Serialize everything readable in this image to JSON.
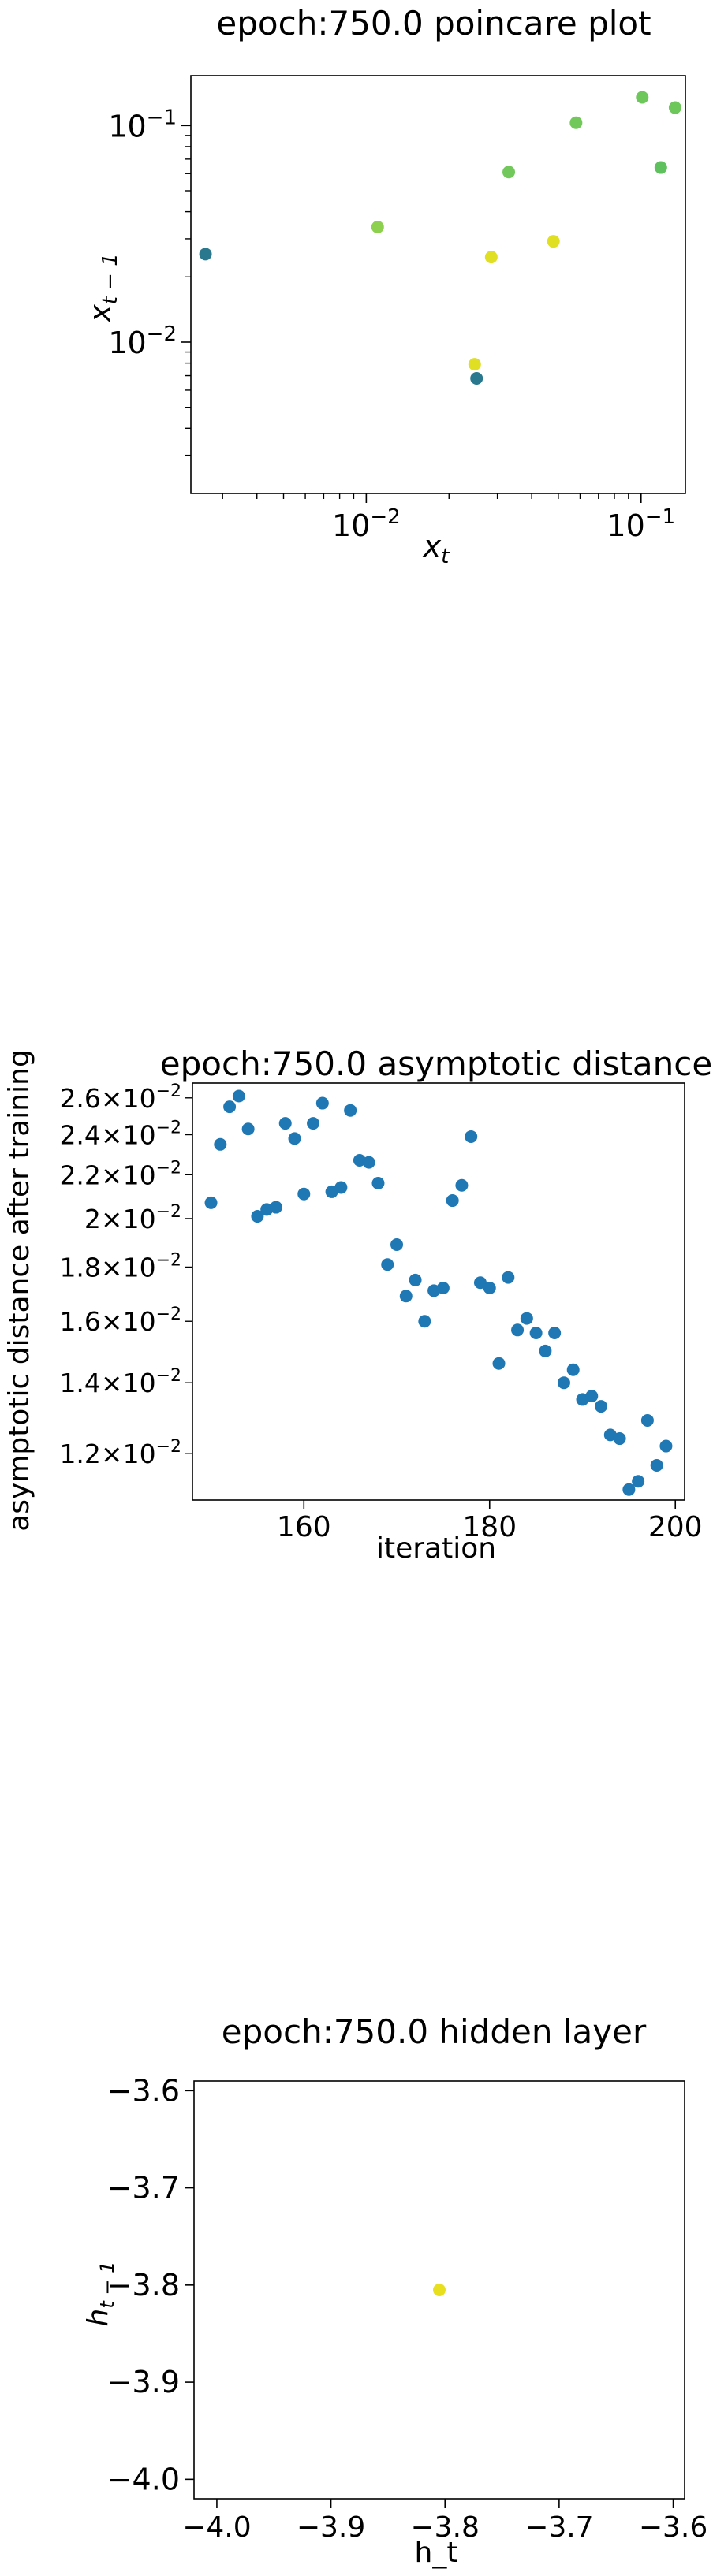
{
  "chart_data": [
    {
      "type": "scatter",
      "title": "epoch:750.0 poincare plot",
      "xlabel": "x_t",
      "ylabel": "x_{t-1}",
      "xscale": "log",
      "yscale": "log",
      "xlim": [
        0.0023,
        0.145
      ],
      "ylim": [
        0.002,
        0.17
      ],
      "xticks": [
        {
          "value": 0.01,
          "label": "10",
          "exp": "−2"
        },
        {
          "value": 0.1,
          "label": "10",
          "exp": "−1"
        }
      ],
      "yticks": [
        {
          "value": 0.01,
          "label": "10",
          "exp": "−2"
        },
        {
          "value": 0.1,
          "label": "10",
          "exp": "−1"
        }
      ],
      "grid": false,
      "points": [
        {
          "x": 0.0026,
          "y": 0.0255,
          "color": "#2a788e"
        },
        {
          "x": 0.0252,
          "y": 0.0068,
          "color": "#2a788e"
        },
        {
          "x": 0.0248,
          "y": 0.0079,
          "color": "#e0df23"
        },
        {
          "x": 0.0285,
          "y": 0.0247,
          "color": "#e0df23"
        },
        {
          "x": 0.048,
          "y": 0.0292,
          "color": "#e0df23"
        },
        {
          "x": 0.011,
          "y": 0.034,
          "color": "#8dd04f"
        },
        {
          "x": 0.033,
          "y": 0.061,
          "color": "#72c85b"
        },
        {
          "x": 0.058,
          "y": 0.103,
          "color": "#72c85b"
        },
        {
          "x": 0.101,
          "y": 0.135,
          "color": "#6ec75a"
        },
        {
          "x": 0.133,
          "y": 0.121,
          "color": "#6ec75a"
        },
        {
          "x": 0.118,
          "y": 0.064,
          "color": "#5fc15e"
        }
      ]
    },
    {
      "type": "scatter",
      "title": "epoch:750.0 asymptotic distance",
      "xlabel": "iteration",
      "ylabel": "asymptotic distance after training",
      "yscale": "log",
      "xlim": [
        148,
        201
      ],
      "ylim": [
        0.01085,
        0.02685
      ],
      "xticks": [
        {
          "value": 160,
          "label": "160"
        },
        {
          "value": 180,
          "label": "180"
        },
        {
          "value": 200,
          "label": "200"
        }
      ],
      "yticks": [
        {
          "value": 0.012,
          "label": "1.2×10",
          "exp": "−2"
        },
        {
          "value": 0.014,
          "label": "1.4×10",
          "exp": "−2"
        },
        {
          "value": 0.016,
          "label": "1.6×10",
          "exp": "−2"
        },
        {
          "value": 0.018,
          "label": "1.8×10",
          "exp": "−2"
        },
        {
          "value": 0.02,
          "label": "2×10",
          "exp": "−2"
        },
        {
          "value": 0.022,
          "label": "2.2×10",
          "exp": "−2"
        },
        {
          "value": 0.024,
          "label": "2.4×10",
          "exp": "−2"
        },
        {
          "value": 0.026,
          "label": "2.6×10",
          "exp": "−2"
        }
      ],
      "grid": false,
      "color": "#1f77b4",
      "x": [
        150,
        151,
        152,
        153,
        154,
        155,
        156,
        157,
        158,
        159,
        160,
        161,
        162,
        163,
        164,
        165,
        166,
        167,
        168,
        169,
        170,
        171,
        172,
        173,
        174,
        175,
        176,
        177,
        178,
        179,
        180,
        181,
        182,
        183,
        184,
        185,
        186,
        187,
        188,
        189,
        190,
        191,
        192,
        193,
        194,
        195,
        196,
        197,
        198,
        199
      ],
      "y": [
        0.0207,
        0.0235,
        0.0255,
        0.0261,
        0.0243,
        0.0201,
        0.0204,
        0.0205,
        0.0246,
        0.0238,
        0.0211,
        0.0246,
        0.0257,
        0.0212,
        0.0214,
        0.0253,
        0.0227,
        0.0226,
        0.0216,
        0.0181,
        0.0189,
        0.0169,
        0.0175,
        0.016,
        0.0171,
        0.0172,
        0.0208,
        0.0215,
        0.0239,
        0.0174,
        0.0172,
        0.0146,
        0.0176,
        0.0157,
        0.0161,
        0.0156,
        0.015,
        0.0156,
        0.014,
        0.0144,
        0.0135,
        0.0136,
        0.0133,
        0.0125,
        0.0124,
        0.0111,
        0.0113,
        0.0129,
        0.0117,
        0.0122
      ]
    },
    {
      "type": "scatter",
      "title": "epoch:750.0 hidden layer",
      "xlabel": "h_t",
      "ylabel": "h_{t-1}",
      "xlim": [
        -4.02,
        -3.59
      ],
      "ylim": [
        -4.02,
        -3.59
      ],
      "xticks": [
        {
          "value": -4.0,
          "label": "−4.0"
        },
        {
          "value": -3.9,
          "label": "−3.9"
        },
        {
          "value": -3.8,
          "label": "−3.8"
        },
        {
          "value": -3.7,
          "label": "−3.7"
        },
        {
          "value": -3.6,
          "label": "−3.6"
        }
      ],
      "yticks": [
        {
          "value": -4.0,
          "label": "−4.0"
        },
        {
          "value": -3.9,
          "label": "−3.9"
        },
        {
          "value": -3.8,
          "label": "−3.8"
        },
        {
          "value": -3.7,
          "label": "−3.7"
        },
        {
          "value": -3.6,
          "label": "−3.6"
        }
      ],
      "grid": false,
      "points": [
        {
          "x": -3.805,
          "y": -3.805,
          "color": "#e8e01f"
        }
      ]
    }
  ]
}
